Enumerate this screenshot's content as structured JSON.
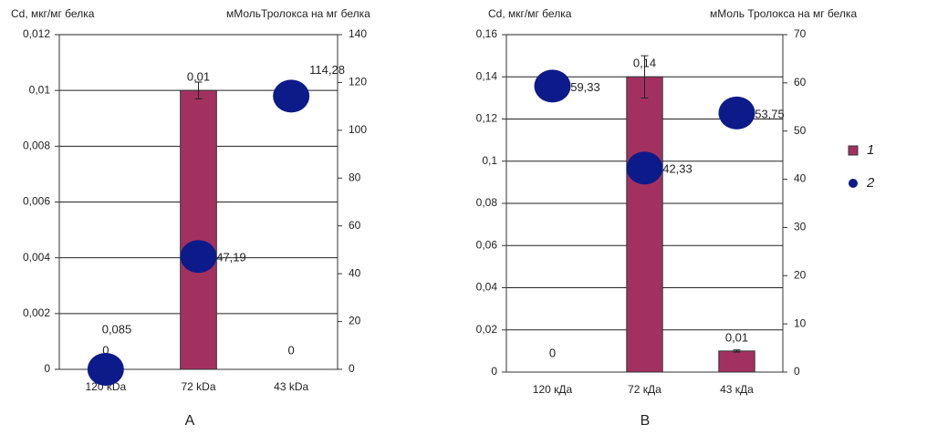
{
  "chart_data": [
    {
      "type": "bar",
      "subtitle": "А",
      "ylabel": "Cd, мкг/мг белка",
      "y2label": "мМольТролокса на мг белка",
      "categories": [
        "120 kDa",
        "72 kDa",
        "43 kDa"
      ],
      "series": [
        {
          "type": "bar",
          "color": "#a33160",
          "values": [
            0,
            0.01,
            0
          ],
          "errors": [
            0,
            0.0003,
            0
          ],
          "value_labels": [
            "0",
            "0,01",
            "0"
          ]
        },
        {
          "type": "scatter",
          "axis": "y2",
          "color": "#0d1a8a",
          "values": [
            0,
            47.19,
            114.28
          ],
          "value_labels": [
            null,
            "47,19",
            "114,28"
          ]
        }
      ],
      "annotations": [
        "0,085"
      ],
      "ylim": [
        0,
        0.012
      ],
      "yticks": [
        0,
        {
          "value": 0.002,
          "label": "0,002"
        },
        {
          "value": 0.004,
          "label": "0,004"
        },
        {
          "value": 0.006,
          "label": "0,006"
        },
        {
          "value": 0.008,
          "label": "0,008"
        },
        {
          "value": 0.01,
          "label": "0,01"
        },
        {
          "value": 0.012,
          "label": "0,012"
        }
      ],
      "y2lim": [
        0,
        140
      ],
      "y2ticks": [
        0,
        20,
        40,
        60,
        80,
        100,
        120,
        140
      ],
      "grid": true
    },
    {
      "type": "bar",
      "subtitle": "В",
      "ylabel": "Cd, мкг/мг белка",
      "y2label": "мМоль Тролокса на мг белка",
      "categories": [
        "120 кДа",
        "72 кДа",
        "43 кДа"
      ],
      "series": [
        {
          "name": "1",
          "type": "bar",
          "color": "#a33160",
          "values": [
            0,
            0.14,
            0.01
          ],
          "errors": [
            0,
            0.01,
            0.0005
          ],
          "value_labels": [
            "0",
            "0,14",
            "0,01"
          ]
        },
        {
          "name": "2",
          "type": "scatter",
          "axis": "y2",
          "color": "#0d1a8a",
          "values": [
            59.33,
            42.33,
            53.75
          ],
          "value_labels": [
            "59,33",
            "42,33",
            "53,75"
          ]
        }
      ],
      "ylim": [
        0,
        0.16
      ],
      "yticks": [
        0,
        {
          "value": 0.02,
          "label": "0,02"
        },
        {
          "value": 0.04,
          "label": "0,04"
        },
        {
          "value": 0.06,
          "label": "0,06"
        },
        {
          "value": 0.08,
          "label": "0,08"
        },
        {
          "value": 0.1,
          "label": "0,1"
        },
        {
          "value": 0.12,
          "label": "0,12"
        },
        {
          "value": 0.14,
          "label": "0,14"
        },
        {
          "value": 0.16,
          "label": "0,16"
        }
      ],
      "y2lim": [
        0,
        70
      ],
      "y2ticks": [
        0,
        10,
        20,
        30,
        40,
        50,
        60,
        70
      ],
      "grid": true,
      "legend": "right"
    }
  ]
}
